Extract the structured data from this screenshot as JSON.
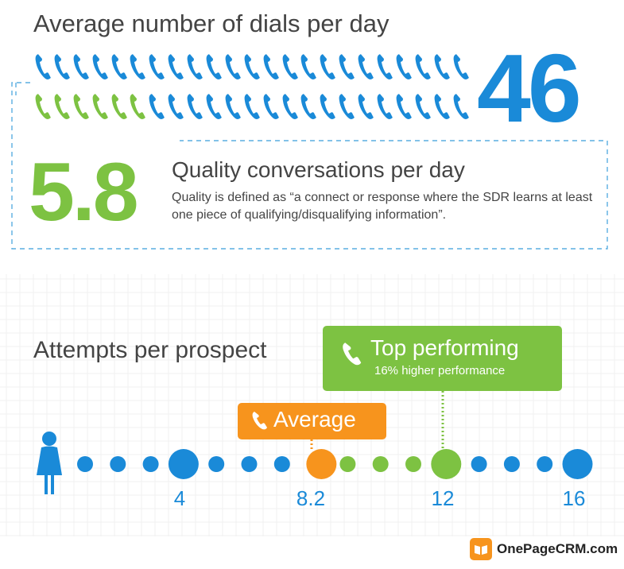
{
  "dials": {
    "title": "Average number of dials per day",
    "value": "46",
    "total_phones": 46,
    "highlighted_phones": 6
  },
  "quality": {
    "value": "5.8",
    "title": "Quality conversations per day",
    "description": "Quality is defined as “a connect or response where the SDR learns at least one piece of qualifying/disqualifying information”."
  },
  "attempts": {
    "title": "Attempts per prospect",
    "top_label": "Top performing",
    "top_sub": "16% higher performance",
    "average_label": "Average",
    "ticks": [
      "4",
      "8.2",
      "12",
      "16"
    ],
    "average_value": 8.2,
    "top_value": 12
  },
  "logo": {
    "text": "OnePageCRM.com"
  },
  "colors": {
    "blue": "#1a8ad8",
    "green": "#7dc242",
    "orange": "#f7941d"
  },
  "icons": [
    "phone-icon",
    "person-icon",
    "logo-book-icon"
  ]
}
